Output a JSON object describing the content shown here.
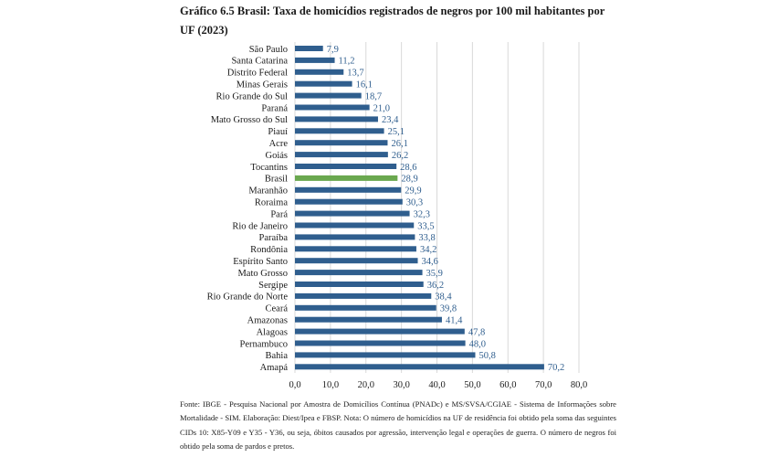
{
  "chart_data": {
    "type": "bar",
    "orientation": "horizontal",
    "title": "Gráfico 6.5 Brasil: Taxa de homicídios registrados de negros por 100 mil habitantes por UF (2023)",
    "categories": [
      "São Paulo",
      "Santa Catarina",
      "Distrito Federal",
      "Minas Gerais",
      "Rio Grande do Sul",
      "Paraná",
      "Mato Grosso do Sul",
      "Piauí",
      "Acre",
      "Goiás",
      "Tocantins",
      "Brasil",
      "Maranhão",
      "Roraima",
      "Pará",
      "Rio de Janeiro",
      "Paraíba",
      "Rondônia",
      "Espírito Santo",
      "Mato Grosso",
      "Sergipe",
      "Rio Grande do Norte",
      "Ceará",
      "Amazonas",
      "Alagoas",
      "Pernambuco",
      "Bahia",
      "Amapá"
    ],
    "values": [
      7.9,
      11.2,
      13.7,
      16.1,
      18.7,
      21.0,
      23.4,
      25.1,
      26.1,
      26.2,
      28.6,
      28.9,
      29.9,
      30.3,
      32.3,
      33.5,
      33.8,
      34.2,
      34.6,
      35.9,
      36.2,
      38.4,
      39.8,
      41.4,
      47.8,
      48.0,
      50.8,
      70.2
    ],
    "value_labels": [
      "7,9",
      "11,2",
      "13,7",
      "16,1",
      "18,7",
      "21,0",
      "23,4",
      "25,1",
      "26,1",
      "26,2",
      "28,6",
      "28,9",
      "29,9",
      "30,3",
      "32,3",
      "33,5",
      "33,8",
      "34,2",
      "34,6",
      "35,9",
      "36,2",
      "38,4",
      "39,8",
      "41,4",
      "47,8",
      "48,0",
      "50,8",
      "70,2"
    ],
    "highlight_category": "Brasil",
    "xlim": [
      0,
      80
    ],
    "xticks": [
      0,
      10,
      20,
      30,
      40,
      50,
      60,
      70,
      80
    ],
    "xtick_labels": [
      "0,0",
      "10,0",
      "20,0",
      "30,0",
      "40,0",
      "50,0",
      "60,0",
      "70,0",
      "80,0"
    ],
    "grid": "vertical",
    "colors": {
      "bar": "#2f5e8e",
      "highlight": "#6aa84f",
      "label": "#2f5e8e"
    }
  },
  "source_note": "Fonte: IBGE - Pesquisa Nacional por Amostra de Domicílios Contínua (PNADc) e MS/SVSA/CGIAE - Sistema de Informações sobre Mortalidade - SIM. Elaboração: Diest/Ipea e FBSP. Nota: O número de homicídios na UF de residência foi obtido pela soma das seguintes CIDs 10: X85-Y09 e Y35 - Y36, ou seja, óbitos causados por agressão, intervenção legal e operações de guerra. O número de negros foi obtido pela soma de pardos e pretos."
}
